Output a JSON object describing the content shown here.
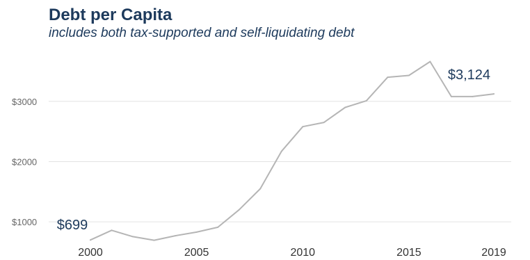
{
  "chart_data": {
    "type": "line",
    "title": "Debt per Capita",
    "subtitle": "includes both tax-supported and self-liquidating debt",
    "xlabel": "",
    "ylabel": "",
    "x": [
      2000,
      2001,
      2002,
      2003,
      2004,
      2005,
      2006,
      2007,
      2008,
      2009,
      2010,
      2011,
      2012,
      2013,
      2014,
      2015,
      2016,
      2017,
      2018,
      2019
    ],
    "series": [
      {
        "values": [
          699,
          860,
          755,
          695,
          770,
          830,
          910,
          1200,
          1550,
          2170,
          2580,
          2650,
          2900,
          3010,
          3400,
          3430,
          3660,
          3080,
          3080,
          3124
        ]
      }
    ],
    "x_ticks": [
      2000,
      2005,
      2010,
      2015,
      2019
    ],
    "y_ticks": [
      1000,
      2000,
      3000
    ],
    "y_tick_labels": [
      "$1000",
      "$2000",
      "$3000"
    ],
    "xlim": [
      2000,
      2019
    ],
    "ylim": [
      540,
      3840
    ],
    "grid": "horizontal",
    "line_color": "#b5b5b5",
    "text_color": "#1d3a5c",
    "annotations": [
      {
        "x": 2000,
        "y": 699,
        "text": "$699"
      },
      {
        "x": 2019,
        "y": 3124,
        "text": "$3,124"
      }
    ]
  }
}
